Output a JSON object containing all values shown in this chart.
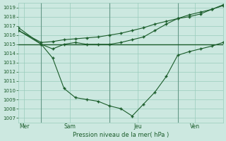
{
  "background_color": "#cce8e0",
  "grid_color": "#99ccbb",
  "line_color": "#1a5c2a",
  "marker_color": "#1a5c2a",
  "title": "Pression niveau de la mer( hPa )",
  "day_labels": [
    "Mer",
    "Sam",
    "Jeu",
    "Ven"
  ],
  "day_positions": [
    0.5,
    4.5,
    10.5,
    15.5
  ],
  "vline_positions": [
    2,
    8,
    14
  ],
  "ylim": [
    1006.5,
    1019.5
  ],
  "yticks": [
    1007,
    1008,
    1009,
    1010,
    1011,
    1012,
    1013,
    1014,
    1015,
    1016,
    1017,
    1018,
    1019
  ],
  "xlim": [
    0,
    18
  ],
  "series_flat": {
    "x": [
      0,
      18
    ],
    "y": [
      1015.0,
      1015.0
    ]
  },
  "series_deep": {
    "x": [
      0,
      2,
      3,
      4,
      5,
      6,
      7,
      8,
      9,
      10,
      11,
      12,
      13,
      14,
      15,
      16,
      17,
      18
    ],
    "y": [
      1016.5,
      1015.0,
      1013.5,
      1010.2,
      1009.2,
      1009.0,
      1008.8,
      1008.3,
      1008.0,
      1007.2,
      1008.5,
      1009.8,
      1011.5,
      1013.8,
      1014.2,
      1014.5,
      1014.8,
      1015.2
    ]
  },
  "series_mid": {
    "x": [
      0,
      2,
      3,
      4,
      5,
      6,
      7,
      8,
      9,
      10,
      11,
      12,
      13,
      14,
      15,
      16,
      17,
      18
    ],
    "y": [
      1016.8,
      1015.0,
      1014.5,
      1015.0,
      1015.2,
      1015.0,
      1015.0,
      1015.0,
      1015.2,
      1015.5,
      1015.8,
      1016.5,
      1017.2,
      1017.8,
      1018.2,
      1018.5,
      1018.8,
      1019.2
    ]
  },
  "series_rise": {
    "x": [
      0,
      2,
      3,
      4,
      5,
      6,
      7,
      8,
      9,
      10,
      11,
      12,
      13,
      14,
      15,
      16,
      17,
      18
    ],
    "y": [
      1016.5,
      1015.2,
      1015.3,
      1015.5,
      1015.6,
      1015.7,
      1015.8,
      1016.0,
      1016.2,
      1016.5,
      1016.8,
      1017.2,
      1017.5,
      1017.8,
      1018.0,
      1018.3,
      1018.8,
      1019.3
    ]
  }
}
